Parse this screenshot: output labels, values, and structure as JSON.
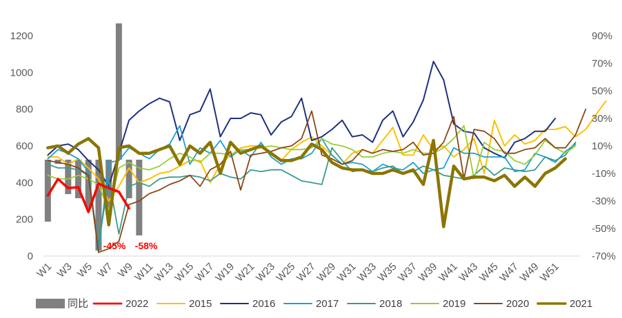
{
  "chart_data": {
    "type": "line",
    "title": "",
    "xlabel": "",
    "ylabel": "",
    "ylim": [
      0,
      1200
    ],
    "y2lim": [
      -70,
      90
    ],
    "yticks": [
      "0",
      "200",
      "400",
      "600",
      "800",
      "1000",
      "1200"
    ],
    "y2ticks": [
      "-70%",
      "-50%",
      "-30%",
      "-10%",
      "10%",
      "30%",
      "50%",
      "70%",
      "90%"
    ],
    "x_tick_labels": [
      "W1",
      "W3",
      "W5",
      "W7",
      "W9",
      "W11",
      "W13",
      "W15",
      "W17",
      "W19",
      "W21",
      "W23",
      "W25",
      "W27",
      "W29",
      "W31",
      "W33",
      "W35",
      "W37",
      "W39",
      "W41",
      "W43",
      "W45",
      "W47",
      "W49",
      "W51"
    ],
    "yoy_bars": {
      "name": "同比",
      "color": "#808080",
      "values": [
        -45,
        -3,
        -25,
        -28,
        -35,
        -66,
        -40,
        99,
        -28,
        -55
      ]
    },
    "series": [
      {
        "name": "2022",
        "color": "#ff0000",
        "width": 3.5,
        "values": [
          330,
          420,
          370,
          375,
          240,
          395,
          370,
          350,
          260
        ]
      },
      {
        "name": "2015",
        "color": "#ffc000",
        "width": 2,
        "values": [
          540,
          540,
          500,
          530,
          480,
          420,
          300,
          380,
          480,
          400,
          420,
          450,
          460,
          490,
          520,
          520,
          400,
          500,
          550,
          590,
          600,
          600,
          550,
          520,
          580,
          620,
          650,
          600,
          550,
          500,
          560,
          580,
          560,
          630,
          700,
          550,
          550,
          660,
          580,
          600,
          540,
          580,
          640,
          450,
          740,
          600,
          660,
          610,
          630,
          690,
          690,
          705,
          650,
          690,
          770,
          845
        ]
      },
      {
        "name": "2016",
        "color": "#1f3080",
        "width": 2,
        "values": [
          550,
          600,
          610,
          580,
          520,
          470,
          380,
          560,
          740,
          790,
          830,
          860,
          840,
          630,
          770,
          790,
          910,
          650,
          750,
          750,
          780,
          770,
          660,
          730,
          760,
          860,
          630,
          650,
          690,
          740,
          650,
          660,
          620,
          740,
          790,
          650,
          730,
          850,
          1060,
          960,
          720,
          680,
          670,
          590,
          560,
          535,
          620,
          640,
          680,
          680,
          750
        ]
      },
      {
        "name": "2017",
        "color": "#1aa0d8",
        "width": 1.8,
        "values": [
          530,
          580,
          560,
          530,
          460,
          20,
          510,
          520,
          590,
          560,
          530,
          580,
          610,
          710,
          500,
          590,
          560,
          630,
          540,
          580,
          540,
          620,
          540,
          500,
          530,
          530,
          560,
          640,
          550,
          500,
          510,
          500,
          460,
          500,
          480,
          470,
          510,
          450,
          470,
          480,
          590,
          560,
          560,
          540,
          540,
          540,
          460,
          470,
          560,
          540,
          510,
          570,
          610
        ]
      },
      {
        "name": "2018",
        "color": "#3a9a8c",
        "width": 1.8,
        "values": [
          500,
          480,
          480,
          470,
          440,
          60,
          420,
          120,
          380,
          400,
          380,
          420,
          430,
          430,
          440,
          430,
          410,
          450,
          430,
          420,
          470,
          460,
          470,
          470,
          440,
          410,
          400,
          390,
          590,
          520,
          460,
          470,
          460,
          480,
          490,
          450,
          460,
          490,
          470,
          440,
          430,
          420,
          440,
          490,
          440,
          480,
          470,
          460,
          470,
          540,
          520,
          550,
          620
        ]
      },
      {
        "name": "2019",
        "color": "#99cc33",
        "width": 1.8,
        "values": [
          440,
          420,
          420,
          440,
          420,
          390,
          250,
          480,
          510,
          480,
          470,
          490,
          530,
          560,
          540,
          510,
          560,
          560,
          550,
          580,
          580,
          590,
          600,
          590,
          580,
          580,
          590,
          640,
          610,
          600,
          580,
          540,
          540,
          560,
          570,
          560,
          580,
          560,
          560,
          590,
          640,
          710,
          420,
          620,
          580,
          570,
          520,
          500,
          550,
          630,
          590,
          560,
          600
        ]
      },
      {
        "name": "2020",
        "color": "#8b4513",
        "width": 1.8,
        "values": [
          520,
          510,
          500,
          480,
          440,
          20,
          40,
          80,
          280,
          300,
          340,
          360,
          390,
          410,
          440,
          380,
          470,
          500,
          570,
          360,
          550,
          560,
          570,
          590,
          600,
          640,
          790,
          550,
          530,
          500,
          520,
          580,
          560,
          580,
          570,
          580,
          620,
          550,
          560,
          620,
          760,
          420,
          690,
          680,
          640,
          560,
          560,
          580,
          590,
          640,
          590,
          590,
          660,
          800
        ]
      },
      {
        "name": "2021",
        "color": "#8b7500",
        "width": 4.5,
        "values": [
          590,
          600,
          560,
          610,
          640,
          590,
          170,
          590,
          600,
          560,
          560,
          580,
          600,
          500,
          600,
          560,
          620,
          450,
          620,
          560,
          580,
          600,
          560,
          520,
          520,
          540,
          610,
          580,
          510,
          480,
          470,
          470,
          450,
          450,
          470,
          450,
          470,
          390,
          630,
          160,
          490,
          420,
          430,
          430,
          410,
          440,
          380,
          430,
          380,
          450,
          480,
          530
        ]
      }
    ],
    "annotations": [
      {
        "text": "-45%",
        "color": "#ff0000"
      },
      {
        "text": "-58%",
        "color": "#ff0000"
      }
    ]
  }
}
